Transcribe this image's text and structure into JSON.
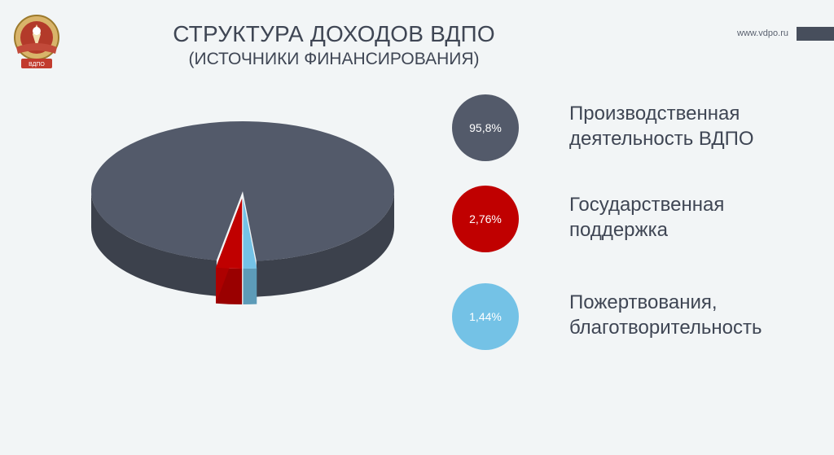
{
  "header": {
    "title": "СТРУКТУРА ДОХОДОВ ВДПО",
    "subtitle": "(ИСТОЧНИКИ ФИНАНСИРОВАНИЯ)",
    "website": "www.vdpo.ru"
  },
  "logo": {
    "icon": "vdpo-emblem-icon",
    "banner_text": "ВДПО"
  },
  "chart_data": {
    "type": "pie",
    "title": "СТРУКТУРА ДОХОДОВ ВДПО",
    "subtitle": "(ИСТОЧНИКИ ФИНАНСИРОВАНИЯ)",
    "style": "3d-exploded",
    "series": [
      {
        "name": "Производственная деятельность ВДПО",
        "value": 95.8,
        "label": "95,8%",
        "color": "#535a6a"
      },
      {
        "name": "Государственная поддержка",
        "value": 2.76,
        "label": "2,76%",
        "color": "#c00000"
      },
      {
        "name": "Пожертвования, благотворительность",
        "value": 1.44,
        "label": "1,44%",
        "color": "#74c2e6"
      }
    ],
    "legend_position": "right"
  },
  "legend": [
    {
      "badge": "95,8%",
      "label": "Производственная\nдеятельность ВДПО",
      "color": "#535a6a"
    },
    {
      "badge": "2,76%",
      "label": "Государственная\nподдержка",
      "color": "#c00000"
    },
    {
      "badge": "1,44%",
      "label": "Пожертвования,\nблаготворительность",
      "color": "#74c2e6"
    }
  ]
}
